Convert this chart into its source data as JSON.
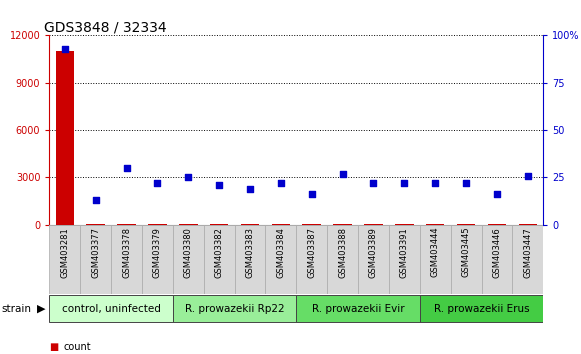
{
  "title": "GDS3848 / 32334",
  "samples": [
    "GSM403281",
    "GSM403377",
    "GSM403378",
    "GSM403379",
    "GSM403380",
    "GSM403382",
    "GSM403383",
    "GSM403384",
    "GSM403387",
    "GSM403388",
    "GSM403389",
    "GSM403391",
    "GSM403444",
    "GSM403445",
    "GSM403446",
    "GSM403447"
  ],
  "count_values": [
    11000,
    30,
    30,
    30,
    30,
    30,
    30,
    30,
    30,
    30,
    30,
    30,
    30,
    30,
    30,
    30
  ],
  "percentile_values": [
    93,
    13,
    30,
    22,
    25,
    21,
    19,
    22,
    16,
    27,
    22,
    22,
    22,
    22,
    16,
    26
  ],
  "groups": [
    {
      "label": "control, uninfected",
      "start": 0,
      "end": 4,
      "color": "#ccffcc"
    },
    {
      "label": "R. prowazekii Rp22",
      "start": 4,
      "end": 8,
      "color": "#99ee99"
    },
    {
      "label": "R. prowazekii Evir",
      "start": 8,
      "end": 12,
      "color": "#66dd66"
    },
    {
      "label": "R. prowazekii Erus",
      "start": 12,
      "end": 16,
      "color": "#44cc44"
    }
  ],
  "left_ylim": [
    0,
    12000
  ],
  "left_yticks": [
    0,
    3000,
    6000,
    9000,
    12000
  ],
  "right_ylim": [
    0,
    100
  ],
  "right_yticks": [
    0,
    25,
    50,
    75,
    100
  ],
  "right_yticklabels": [
    "0",
    "25",
    "50",
    "75",
    "100%"
  ],
  "bar_color": "#cc0000",
  "dot_color": "#0000cc",
  "bg_color": "#ffffff",
  "grid_color": "#000000",
  "tick_label_color_left": "#cc0000",
  "tick_label_color_right": "#0000cc",
  "title_fontsize": 10,
  "tick_fontsize": 7,
  "label_fontsize": 6,
  "group_label_fontsize": 7.5,
  "cell_color": "#d8d8d8",
  "cell_edge_color": "#aaaaaa"
}
